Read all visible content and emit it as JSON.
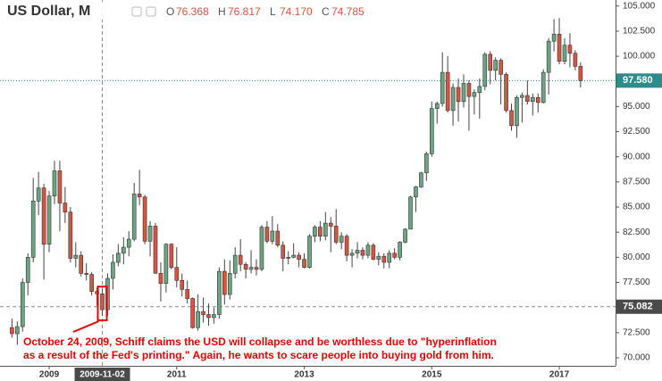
{
  "chart_data": {
    "type": "candlestick",
    "title": "US Dollar, M",
    "ohlc_header": [
      {
        "label": "O",
        "value": 76.368
      },
      {
        "label": "H",
        "value": 76.817
      },
      {
        "label": "L",
        "value": 74.17
      },
      {
        "label": "C",
        "value": 74.785
      }
    ],
    "ohlc_header_labels": [
      "76.368",
      "76.817",
      "74.170",
      "74.785"
    ],
    "categories": [
      null,
      null,
      null,
      null,
      null,
      null,
      null,
      "2009",
      null,
      null,
      null,
      null,
      null,
      null,
      null,
      null,
      null,
      null,
      null,
      null,
      null,
      null,
      null,
      null,
      null,
      null,
      null,
      null,
      null,
      null,
      null,
      "2011",
      null,
      null,
      null,
      null,
      null,
      null,
      null,
      null,
      null,
      null,
      null,
      null,
      null,
      null,
      null,
      null,
      null,
      null,
      null,
      null,
      null,
      null,
      null,
      "2013",
      null,
      null,
      null,
      null,
      null,
      null,
      null,
      null,
      null,
      null,
      null,
      null,
      null,
      null,
      null,
      null,
      null,
      null,
      null,
      null,
      null,
      null,
      null,
      "2015",
      null,
      null,
      null,
      null,
      null,
      null,
      null,
      null,
      null,
      null,
      null,
      null,
      null,
      null,
      null,
      null,
      null,
      null,
      null,
      null,
      null,
      null,
      null,
      "2017",
      null,
      null,
      null,
      null
    ],
    "open": [
      73.0,
      72.4,
      73.1,
      77.5,
      80.0,
      85.6,
      86.9,
      81.3,
      86.1,
      88.6,
      85.4,
      84.5,
      79.9,
      80.2,
      78.4,
      78.3,
      76.6,
      76.368,
      74.785,
      77.9,
      79.5,
      80.4,
      81.0,
      81.8,
      86.3,
      86.0,
      81.6,
      83.1,
      78.4,
      77.4,
      81.3,
      79.0,
      77.7,
      76.8,
      75.9,
      73.0,
      74.6,
      74.3,
      74.0,
      74.3,
      78.6,
      76.3,
      78.4,
      80.2,
      79.3,
      78.8,
      79.0,
      78.8,
      83.0,
      81.6,
      82.6,
      81.2,
      79.9,
      80.0,
      80.2,
      79.8,
      79.0,
      82.1,
      83.0,
      82.1,
      83.4,
      83.1,
      81.5,
      82.1,
      80.2,
      80.4,
      80.7,
      80.2,
      81.2,
      79.8,
      80.1,
      79.5,
      80.4,
      80.0,
      81.5,
      82.8,
      86.0,
      87.0,
      88.4,
      90.3,
      94.8,
      95.3,
      98.4,
      94.6,
      96.9,
      95.5,
      97.3,
      96.0,
      96.4,
      97.0,
      100.2,
      98.6,
      99.6,
      98.2,
      94.6,
      93.1,
      95.9,
      96.1,
      95.5,
      95.9,
      95.4,
      98.4,
      101.5,
      102.2,
      99.5,
      101.1,
      100.3,
      99.0
    ],
    "high": [
      73.9,
      73.6,
      77.9,
      80.4,
      87.9,
      88.5,
      87.3,
      86.6,
      89.6,
      89.6,
      87.0,
      85.0,
      81.5,
      80.6,
      79.4,
      78.5,
      77.0,
      76.817,
      78.4,
      80.3,
      81.3,
      82.0,
      82.6,
      87.4,
      88.7,
      86.2,
      83.6,
      83.4,
      79.5,
      81.4,
      81.4,
      81.0,
      78.4,
      77.7,
      76.0,
      76.3,
      76.0,
      75.4,
      75.0,
      79.0,
      79.8,
      79.7,
      81.0,
      81.8,
      79.5,
      80.7,
      79.8,
      83.2,
      83.6,
      84.1,
      83.3,
      81.6,
      80.6,
      81.4,
      80.5,
      80.4,
      82.3,
      83.2,
      83.6,
      84.5,
      84.0,
      84.8,
      82.5,
      82.3,
      80.8,
      81.5,
      81.0,
      81.5,
      81.4,
      80.5,
      80.4,
      80.7,
      80.9,
      81.6,
      82.9,
      86.1,
      87.1,
      88.5,
      90.5,
      95.5,
      95.5,
      100.4,
      100.0,
      97.3,
      97.8,
      98.2,
      97.6,
      96.7,
      97.8,
      100.4,
      100.5,
      99.9,
      99.8,
      98.4,
      95.3,
      96.1,
      96.4,
      97.6,
      96.3,
      96.3,
      98.7,
      101.8,
      103.7,
      103.8,
      101.8,
      102.3,
      100.6,
      99.4
    ],
    "low": [
      72.0,
      71.3,
      72.6,
      76.2,
      79.5,
      84.2,
      77.8,
      80.5,
      85.3,
      82.6,
      83.4,
      79.5,
      79.0,
      78.1,
      77.7,
      76.2,
      75.2,
      74.17,
      74.2,
      76.8,
      79.1,
      79.3,
      80.1,
      81.6,
      85.2,
      81.3,
      80.1,
      78.4,
      75.6,
      76.5,
      78.8,
      77.0,
      76.1,
      75.4,
      72.9,
      72.7,
      73.5,
      73.2,
      73.4,
      73.9,
      75.3,
      75.8,
      77.9,
      78.6,
      77.9,
      78.4,
      78.2,
      78.6,
      81.4,
      81.3,
      81.0,
      78.6,
      79.3,
      79.9,
      79.0,
      78.9,
      78.9,
      81.5,
      81.6,
      81.7,
      80.5,
      81.3,
      80.8,
      79.6,
      79.0,
      79.9,
      79.8,
      79.9,
      79.7,
      79.2,
      78.9,
      78.9,
      79.8,
      79.7,
      81.4,
      82.8,
      84.5,
      86.9,
      87.6,
      90.0,
      93.3,
      95.0,
      94.4,
      93.1,
      93.5,
      94.9,
      92.6,
      94.2,
      93.8,
      96.6,
      97.2,
      97.6,
      95.2,
      94.4,
      92.6,
      91.9,
      93.4,
      95.2,
      94.1,
      94.4,
      95.3,
      96.2,
      100.5,
      99.2,
      99.2,
      98.9,
      98.6,
      96.9
    ],
    "close": [
      72.4,
      73.1,
      77.5,
      80.0,
      85.6,
      86.9,
      81.3,
      86.1,
      88.6,
      85.4,
      84.5,
      79.9,
      80.2,
      78.4,
      78.3,
      76.6,
      76.368,
      74.785,
      77.9,
      79.5,
      80.4,
      81.0,
      81.8,
      86.3,
      86.0,
      81.6,
      83.1,
      78.4,
      77.4,
      81.3,
      79.0,
      77.7,
      76.8,
      75.9,
      73.0,
      74.6,
      74.3,
      74.0,
      74.3,
      78.6,
      76.3,
      78.4,
      80.2,
      79.3,
      78.8,
      79.0,
      78.8,
      83.0,
      81.6,
      82.6,
      81.2,
      79.9,
      80.0,
      80.2,
      79.8,
      79.0,
      82.1,
      83.0,
      82.1,
      83.4,
      83.1,
      81.5,
      82.1,
      80.2,
      80.4,
      80.7,
      80.2,
      81.2,
      79.8,
      80.1,
      79.5,
      80.4,
      80.0,
      81.5,
      82.8,
      86.0,
      87.0,
      88.4,
      90.3,
      94.8,
      95.3,
      98.4,
      94.6,
      96.9,
      95.5,
      97.3,
      96.0,
      96.4,
      97.0,
      100.2,
      98.6,
      99.6,
      98.2,
      94.6,
      93.1,
      95.9,
      96.1,
      95.5,
      95.9,
      95.4,
      98.4,
      101.5,
      102.2,
      99.5,
      101.1,
      100.3,
      99.0,
      97.58
    ],
    "up_color": "#6ba583",
    "down_color": "#d75442",
    "ylim": [
      69.2,
      105.6
    ],
    "yticks": [
      {
        "value": 70,
        "label": "70.000"
      },
      {
        "value": 72.5,
        "label": "72.500"
      },
      {
        "value": 75,
        "label": "75.000"
      },
      {
        "value": 77.5,
        "label": "77.500"
      },
      {
        "value": 80,
        "label": "80.000"
      },
      {
        "value": 82.5,
        "label": "82.500"
      },
      {
        "value": 85,
        "label": "85.000"
      },
      {
        "value": 87.5,
        "label": "87.500"
      },
      {
        "value": 90,
        "label": "90.000"
      },
      {
        "value": 92.5,
        "label": "92.500"
      },
      {
        "value": 95,
        "label": "95.000"
      },
      {
        "value": 97.5,
        "label": "97.500"
      },
      {
        "value": 100,
        "label": "100.000"
      },
      {
        "value": 102.5,
        "label": "102.500"
      },
      {
        "value": 105,
        "label": "105.000"
      }
    ],
    "last_price": {
      "value": 97.58,
      "label": "97.580"
    },
    "crosshair": {
      "y_value": 75.082,
      "x_label": "2009-11-02"
    },
    "annotation": [
      "October 24, 2009, Schiff claims the USD will collapse and be worthless due to \"hyperinflation",
      "as a result of the Fed's printing.\" Again, he wants to scare people into buying gold from him."
    ]
  }
}
